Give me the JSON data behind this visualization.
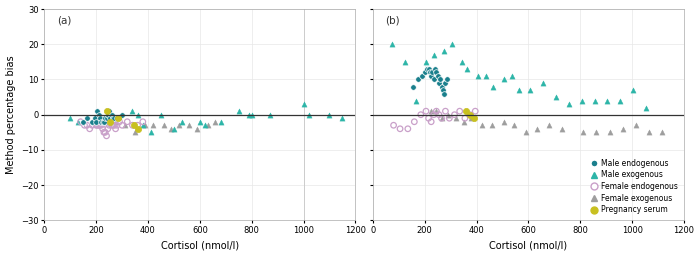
{
  "panel_a": {
    "male_endo": {
      "x": [
        150,
        165,
        185,
        195,
        200,
        205,
        210,
        215,
        220,
        225,
        230,
        235,
        240,
        245,
        250,
        255,
        260,
        265,
        270,
        280,
        290,
        300
      ],
      "y": [
        -2,
        -1,
        -2,
        -1,
        -2,
        1,
        0,
        -1,
        -2,
        -2,
        -2,
        -1,
        -1,
        0,
        1,
        -1,
        0,
        -1,
        -1,
        -1,
        -1,
        0
      ]
    },
    "male_exo": {
      "x": [
        100,
        130,
        270,
        340,
        360,
        380,
        410,
        450,
        500,
        530,
        600,
        620,
        680,
        750,
        790,
        800,
        870,
        1000,
        1020,
        1100,
        1150
      ],
      "y": [
        -1,
        -2,
        -1,
        1,
        0,
        -3,
        -5,
        0,
        -4,
        -2,
        -2,
        -3,
        -2,
        1,
        0,
        0,
        0,
        3,
        0,
        0,
        -1
      ]
    },
    "female_endo": {
      "x": [
        140,
        155,
        165,
        175,
        185,
        195,
        200,
        205,
        210,
        215,
        220,
        225,
        230,
        235,
        240,
        245,
        250,
        255,
        260,
        265,
        270,
        275,
        280,
        290,
        300,
        320,
        340,
        360,
        380
      ],
      "y": [
        -2,
        -3,
        -3,
        -4,
        -3,
        -2,
        -3,
        -3,
        -3,
        -3,
        -3,
        -4,
        -5,
        -5,
        -6,
        -4,
        -3,
        -2,
        -3,
        -3,
        -3,
        -4,
        -3,
        -2,
        -3,
        -2,
        -3,
        -3,
        -2
      ]
    },
    "female_exo": {
      "x": [
        205,
        250,
        275,
        310,
        350,
        390,
        420,
        460,
        490,
        520,
        560,
        590,
        630,
        660
      ],
      "y": [
        -1,
        -2,
        -2,
        -3,
        -5,
        -3,
        -3,
        -3,
        -4,
        -3,
        -3,
        -4,
        -3,
        -2
      ]
    },
    "pregnancy": {
      "x": [
        240,
        255,
        285,
        345,
        360
      ],
      "y": [
        1,
        -2,
        -1,
        -3,
        -4
      ]
    }
  },
  "panel_b": {
    "male_endo": {
      "x": [
        155,
        175,
        190,
        200,
        210,
        215,
        220,
        225,
        230,
        235,
        240,
        245,
        250,
        255,
        260,
        265,
        270,
        275,
        280,
        285
      ],
      "y": [
        8,
        10,
        11,
        12,
        13,
        13,
        12,
        11,
        12,
        10,
        13,
        12,
        11,
        9,
        10,
        8,
        7,
        6,
        9,
        10
      ]
    },
    "male_exo": {
      "x": [
        75,
        125,
        165,
        205,
        235,
        275,
        305,
        345,
        365,
        405,
        435,
        465,
        505,
        535,
        565,
        605,
        655,
        705,
        755,
        805,
        855,
        905,
        955,
        1005,
        1055
      ],
      "y": [
        20,
        15,
        4,
        15,
        17,
        18,
        20,
        15,
        13,
        11,
        11,
        8,
        10,
        11,
        7,
        7,
        9,
        5,
        3,
        4,
        4,
        4,
        4,
        7,
        2
      ]
    },
    "female_endo": {
      "x": [
        80,
        105,
        135,
        160,
        185,
        205,
        215,
        225,
        235,
        245,
        255,
        265,
        280,
        295,
        315,
        335,
        355,
        375,
        395
      ],
      "y": [
        -3,
        -4,
        -4,
        -2,
        0,
        1,
        -1,
        -2,
        0,
        1,
        0,
        -1,
        1,
        -1,
        0,
        1,
        -1,
        0,
        1
      ]
    },
    "female_exo": {
      "x": [
        225,
        245,
        265,
        290,
        320,
        350,
        380,
        420,
        460,
        505,
        545,
        590,
        635,
        680,
        730,
        810,
        860,
        915,
        965,
        1015,
        1065,
        1115
      ],
      "y": [
        1,
        1,
        -1,
        0,
        -1,
        -2,
        -1,
        -3,
        -3,
        -2,
        -3,
        -5,
        -4,
        -3,
        -4,
        -5,
        -5,
        -5,
        -4,
        -3,
        -5,
        -5
      ]
    },
    "pregnancy": {
      "x": [
        360,
        375,
        390
      ],
      "y": [
        1,
        0,
        -1
      ]
    }
  },
  "colors": {
    "male_endo": "#1a7f8c",
    "male_exo": "#2db5a8",
    "female_endo": "#c9a0c9",
    "female_exo": "#9e9e9e",
    "pregnancy": "#c8c020"
  },
  "ylim": [
    -30,
    30
  ],
  "xlim": [
    0,
    1200
  ],
  "yticks": [
    -30,
    -20,
    -10,
    0,
    10,
    20,
    30
  ],
  "xticks": [
    0,
    200,
    400,
    600,
    800,
    1000,
    1200
  ],
  "ylabel": "Method percentage bias",
  "xlabel": "Cortisol (nmol/l)",
  "bg_color": "#ffffff",
  "vline_a_x": 1000,
  "legend_items": [
    "Male endogenous",
    "Male exogenous",
    "Female endogenous",
    "Female exogenous",
    "Pregnancy serum"
  ]
}
